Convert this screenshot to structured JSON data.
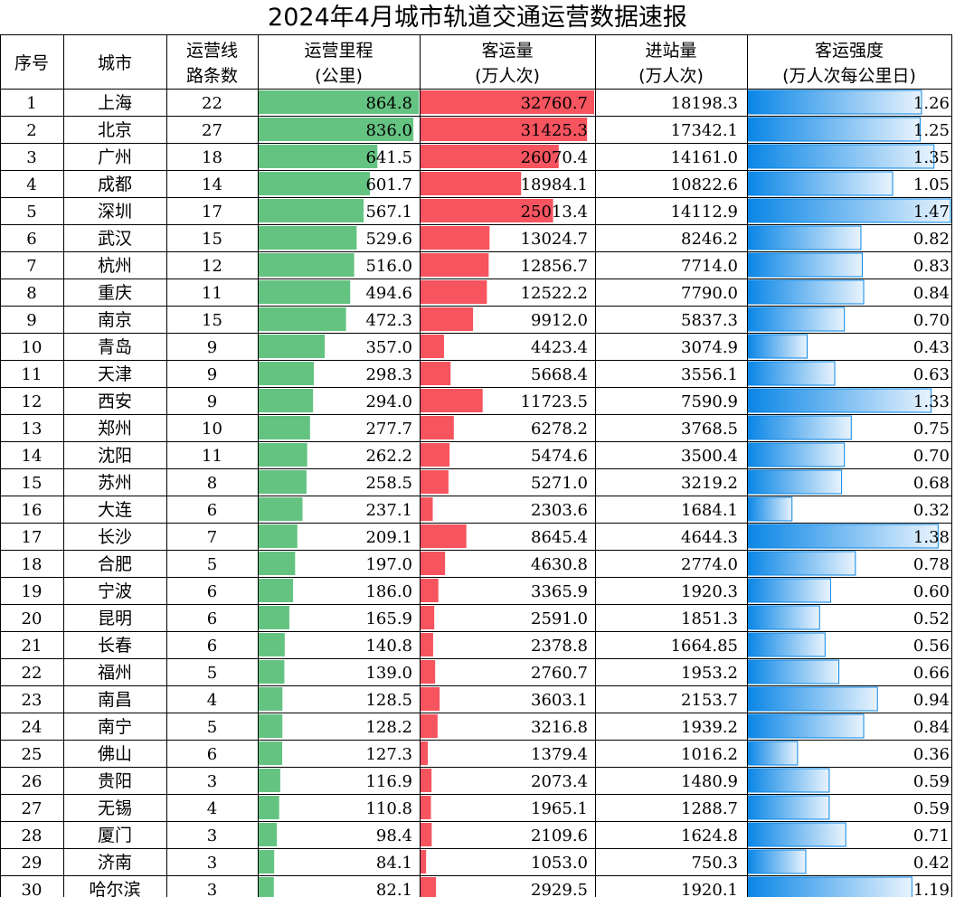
{
  "title": "2024年4月城市轨道交通运营数据速报",
  "colors": {
    "mileage_bar": "#65c382",
    "ridership_bar": "#f6545f",
    "intensity_bar_start": "#0a86e6",
    "intensity_bar_end": "#e8f3fd",
    "grid_line": "#000000"
  },
  "headers": {
    "index": "序号",
    "city": "城市",
    "lines": [
      "运营线",
      "路条数"
    ],
    "mileage": [
      "运营里程",
      "(公里)"
    ],
    "ridership": [
      "客运量",
      "(万人次)"
    ],
    "entries": [
      "进站量",
      "(万人次)"
    ],
    "intensity": [
      "客运强度",
      "(万人次每公里日)"
    ]
  },
  "chart_data": {
    "type": "table",
    "title": "2024年4月城市轨道交通运营数据速报",
    "columns": [
      "序号",
      "城市",
      "运营线路条数",
      "运营里程(公里)",
      "客运量(万人次)",
      "进站量(万人次)",
      "客运强度(万人次每公里日)"
    ],
    "scales": {
      "mileage_max": 864.8,
      "ridership_max": 32760.7,
      "intensity_max": 1.47
    },
    "rows": [
      {
        "index": "1",
        "city": "上海",
        "lines": "22",
        "mileage": "864.8",
        "ridership": "32760.7",
        "entries": "18198.3",
        "intensity": "1.26"
      },
      {
        "index": "2",
        "city": "北京",
        "lines": "27",
        "mileage": "836.0",
        "ridership": "31425.3",
        "entries": "17342.1",
        "intensity": "1.25"
      },
      {
        "index": "3",
        "city": "广州",
        "lines": "18",
        "mileage": "641.5",
        "ridership": "26070.4",
        "entries": "14161.0",
        "intensity": "1.35"
      },
      {
        "index": "4",
        "city": "成都",
        "lines": "14",
        "mileage": "601.7",
        "ridership": "18984.1",
        "entries": "10822.6",
        "intensity": "1.05"
      },
      {
        "index": "5",
        "city": "深圳",
        "lines": "17",
        "mileage": "567.1",
        "ridership": "25013.4",
        "entries": "14112.9",
        "intensity": "1.47"
      },
      {
        "index": "6",
        "city": "武汉",
        "lines": "15",
        "mileage": "529.6",
        "ridership": "13024.7",
        "entries": "8246.2",
        "intensity": "0.82"
      },
      {
        "index": "7",
        "city": "杭州",
        "lines": "12",
        "mileage": "516.0",
        "ridership": "12856.7",
        "entries": "7714.0",
        "intensity": "0.83"
      },
      {
        "index": "8",
        "city": "重庆",
        "lines": "11",
        "mileage": "494.6",
        "ridership": "12522.2",
        "entries": "7790.0",
        "intensity": "0.84"
      },
      {
        "index": "9",
        "city": "南京",
        "lines": "15",
        "mileage": "472.3",
        "ridership": "9912.0",
        "entries": "5837.3",
        "intensity": "0.70"
      },
      {
        "index": "10",
        "city": "青岛",
        "lines": "9",
        "mileage": "357.0",
        "ridership": "4423.4",
        "entries": "3074.9",
        "intensity": "0.43"
      },
      {
        "index": "11",
        "city": "天津",
        "lines": "9",
        "mileage": "298.3",
        "ridership": "5668.4",
        "entries": "3556.1",
        "intensity": "0.63"
      },
      {
        "index": "12",
        "city": "西安",
        "lines": "9",
        "mileage": "294.0",
        "ridership": "11723.5",
        "entries": "7590.9",
        "intensity": "1.33"
      },
      {
        "index": "13",
        "city": "郑州",
        "lines": "10",
        "mileage": "277.7",
        "ridership": "6278.2",
        "entries": "3768.5",
        "intensity": "0.75"
      },
      {
        "index": "14",
        "city": "沈阳",
        "lines": "11",
        "mileage": "262.2",
        "ridership": "5474.6",
        "entries": "3500.4",
        "intensity": "0.70"
      },
      {
        "index": "15",
        "city": "苏州",
        "lines": "8",
        "mileage": "258.5",
        "ridership": "5271.0",
        "entries": "3219.2",
        "intensity": "0.68"
      },
      {
        "index": "16",
        "city": "大连",
        "lines": "6",
        "mileage": "237.1",
        "ridership": "2303.6",
        "entries": "1684.1",
        "intensity": "0.32"
      },
      {
        "index": "17",
        "city": "长沙",
        "lines": "7",
        "mileage": "209.1",
        "ridership": "8645.4",
        "entries": "4644.3",
        "intensity": "1.38"
      },
      {
        "index": "18",
        "city": "合肥",
        "lines": "5",
        "mileage": "197.0",
        "ridership": "4630.8",
        "entries": "2774.0",
        "intensity": "0.78"
      },
      {
        "index": "19",
        "city": "宁波",
        "lines": "6",
        "mileage": "186.0",
        "ridership": "3365.9",
        "entries": "1920.3",
        "intensity": "0.60"
      },
      {
        "index": "20",
        "city": "昆明",
        "lines": "6",
        "mileage": "165.9",
        "ridership": "2591.0",
        "entries": "1851.3",
        "intensity": "0.52"
      },
      {
        "index": "21",
        "city": "长春",
        "lines": "6",
        "mileage": "140.8",
        "ridership": "2378.8",
        "entries": "1664.85",
        "intensity": "0.56"
      },
      {
        "index": "22",
        "city": "福州",
        "lines": "5",
        "mileage": "139.0",
        "ridership": "2760.7",
        "entries": "1953.2",
        "intensity": "0.66"
      },
      {
        "index": "23",
        "city": "南昌",
        "lines": "4",
        "mileage": "128.5",
        "ridership": "3603.1",
        "entries": "2153.7",
        "intensity": "0.94"
      },
      {
        "index": "24",
        "city": "南宁",
        "lines": "5",
        "mileage": "128.2",
        "ridership": "3216.8",
        "entries": "1939.2",
        "intensity": "0.84"
      },
      {
        "index": "25",
        "city": "佛山",
        "lines": "6",
        "mileage": "127.3",
        "ridership": "1379.4",
        "entries": "1016.2",
        "intensity": "0.36"
      },
      {
        "index": "26",
        "city": "贵阳",
        "lines": "3",
        "mileage": "116.9",
        "ridership": "2073.4",
        "entries": "1480.9",
        "intensity": "0.59"
      },
      {
        "index": "27",
        "city": "无锡",
        "lines": "4",
        "mileage": "110.8",
        "ridership": "1965.1",
        "entries": "1288.7",
        "intensity": "0.59"
      },
      {
        "index": "28",
        "city": "厦门",
        "lines": "3",
        "mileage": "98.4",
        "ridership": "2109.6",
        "entries": "1624.8",
        "intensity": "0.71"
      },
      {
        "index": "29",
        "city": "济南",
        "lines": "3",
        "mileage": "84.1",
        "ridership": "1053.0",
        "entries": "750.3",
        "intensity": "0.42"
      },
      {
        "index": "30",
        "city": "哈尔滨",
        "lines": "3",
        "mileage": "82.1",
        "ridership": "2929.5",
        "entries": "1920.1",
        "intensity": "1.19"
      }
    ]
  }
}
